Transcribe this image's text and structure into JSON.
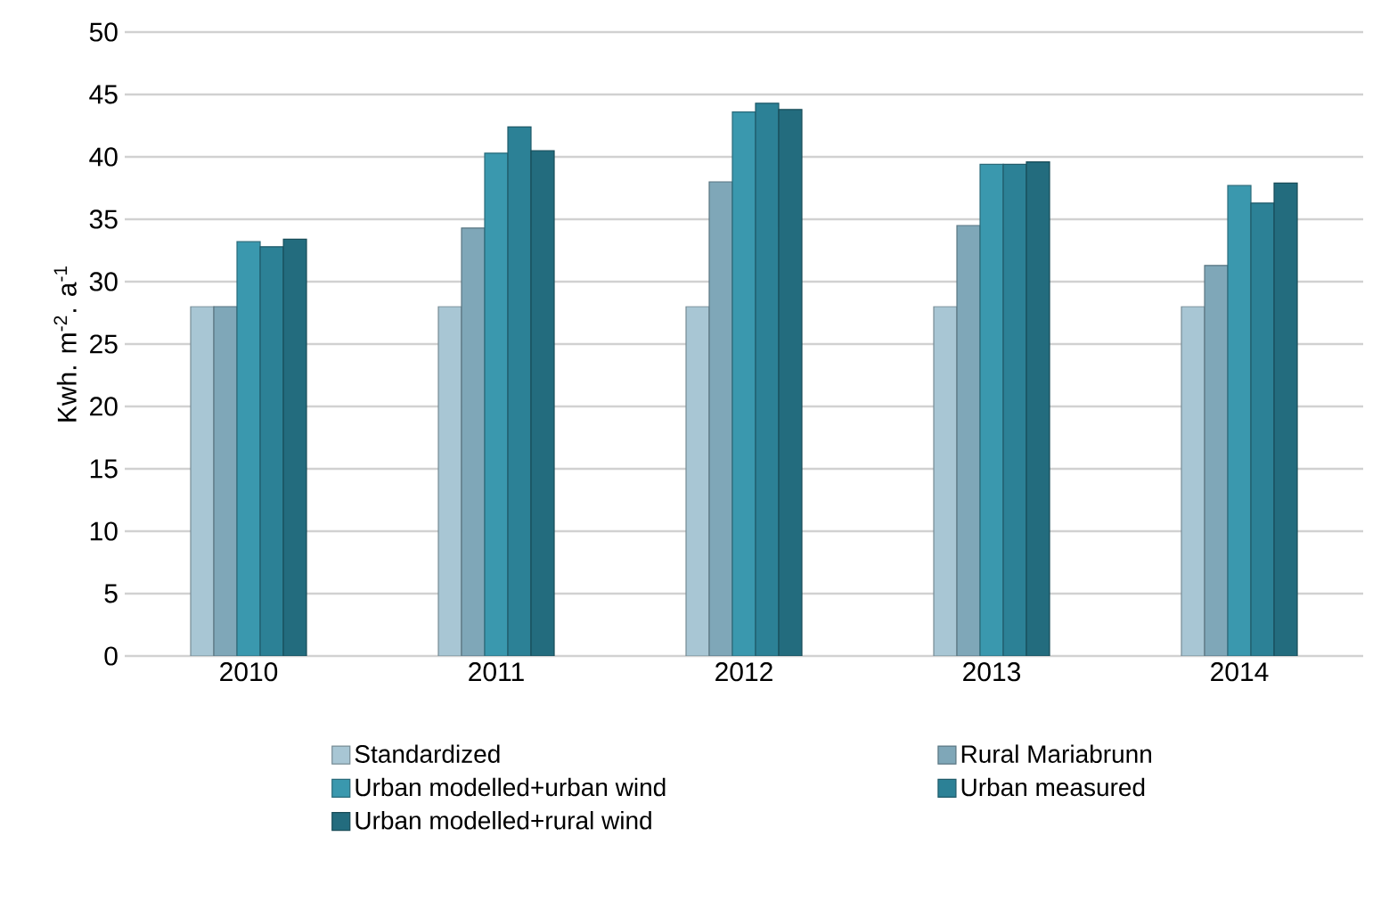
{
  "chart_data": {
    "type": "bar",
    "ylabel": "Kwh. m$^{-2}$. a$^{-1}$",
    "categories": [
      "2010",
      "2011",
      "2012",
      "2013",
      "2014"
    ],
    "series": [
      {
        "name": "Standardized",
        "color": "#a8c6d4",
        "values": [
          28,
          28,
          28,
          28,
          28
        ]
      },
      {
        "name": "Rural Mariabrunn",
        "color": "#7fa7b8",
        "values": [
          28,
          34.3,
          38,
          34.5,
          31.3
        ]
      },
      {
        "name": "Urban modelled+urban wind",
        "color": "#3a98ae",
        "values": [
          33.2,
          40.3,
          43.6,
          39.4,
          37.7
        ]
      },
      {
        "name": "Urban measured",
        "color": "#2c8196",
        "values": [
          32.8,
          42.4,
          44.3,
          39.4,
          36.3
        ]
      },
      {
        "name": "Urban modelled+rural wind",
        "color": "#236c7e",
        "values": [
          33.4,
          40.5,
          43.8,
          39.6,
          37.9
        ]
      }
    ],
    "ylim": [
      0,
      50
    ],
    "yticks": [
      0,
      5,
      10,
      15,
      20,
      25,
      30,
      35,
      40,
      45,
      50
    ],
    "grid": "y",
    "legend": "bottom"
  }
}
